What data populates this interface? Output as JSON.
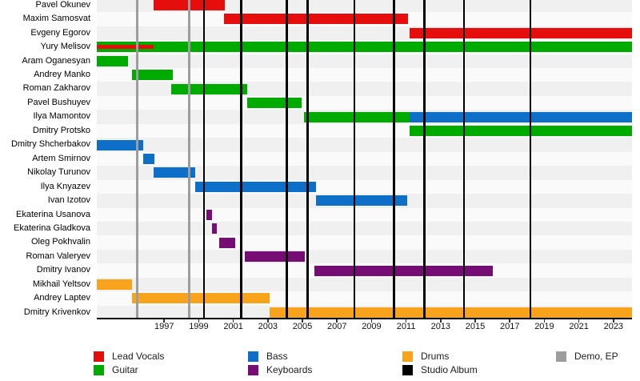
{
  "chart_data": {
    "type": "bar",
    "subtype": "horizontal-timeline-gantt (band members timeline)",
    "title": "",
    "xlabel": "",
    "ylabel": "",
    "x_axis": {
      "tick_years": [
        1997,
        1999,
        2001,
        2003,
        2005,
        2007,
        2009,
        2011,
        2013,
        2015,
        2017,
        2019,
        2021,
        2023
      ],
      "range": [
        1993.1,
        2024.1
      ],
      "grid": false
    },
    "roles": {
      "lead_vocals": {
        "label": "Lead Vocals",
        "color": "#e60d0d"
      },
      "guitar": {
        "label": "Guitar",
        "color": "#00ab00"
      },
      "bass": {
        "label": "Bass",
        "color": "#0e6fc8"
      },
      "keyboards": {
        "label": "Keyboards",
        "color": "#750d75"
      },
      "drums": {
        "label": "Drums",
        "color": "#f9a31d"
      },
      "studio_album": {
        "label": "Studio Album",
        "color": "#000000"
      },
      "demo_ep": {
        "label": "Demo, EP",
        "color": "#9d9d9d"
      }
    },
    "members": [
      {
        "name": "Pavel Okunev",
        "segments": [
          {
            "role": "lead_vocals",
            "start": 1996.4,
            "end": 2000.5
          }
        ]
      },
      {
        "name": "Maxim Samosvat",
        "segments": [
          {
            "role": "lead_vocals",
            "start": 2000.45,
            "end": 2011.1
          }
        ]
      },
      {
        "name": "Evgeny Egorov",
        "segments": [
          {
            "role": "lead_vocals",
            "start": 2011.2,
            "end": 2024.1
          }
        ]
      },
      {
        "name": "Yury Melisov",
        "segments": [
          {
            "role": "guitar",
            "start": 1993.1,
            "end": 2024.1
          },
          {
            "role": "lead_vocals",
            "start": 1993.1,
            "end": 1996.4,
            "thin": true
          }
        ]
      },
      {
        "name": "Aram Oganesyan",
        "segments": [
          {
            "role": "guitar",
            "start": 1993.1,
            "end": 1994.9
          }
        ]
      },
      {
        "name": "Andrey Manko",
        "segments": [
          {
            "role": "guitar",
            "start": 1995.15,
            "end": 1997.5
          }
        ]
      },
      {
        "name": "Roman Zakharov",
        "segments": [
          {
            "role": "guitar",
            "start": 1997.4,
            "end": 2001.8
          }
        ]
      },
      {
        "name": "Pavel Bushuyev",
        "segments": [
          {
            "role": "guitar",
            "start": 2001.8,
            "end": 2004.95
          }
        ]
      },
      {
        "name": "Ilya Mamontov",
        "segments": [
          {
            "role": "guitar",
            "start": 2005.1,
            "end": 2011.2
          },
          {
            "role": "bass",
            "start": 2011.2,
            "end": 2024.1
          }
        ]
      },
      {
        "name": "Dmitry Protsko",
        "segments": [
          {
            "role": "guitar",
            "start": 2011.2,
            "end": 2024.1
          }
        ]
      },
      {
        "name": "Dmitry Shcherbakov",
        "segments": [
          {
            "role": "bass",
            "start": 1993.1,
            "end": 1995.8
          }
        ]
      },
      {
        "name": "Artem Smirnov",
        "segments": [
          {
            "role": "bass",
            "start": 1995.8,
            "end": 1996.45
          }
        ]
      },
      {
        "name": "Nikolay Turunov",
        "segments": [
          {
            "role": "bass",
            "start": 1996.4,
            "end": 1998.8
          }
        ]
      },
      {
        "name": "Ilya Knyazev",
        "segments": [
          {
            "role": "bass",
            "start": 1998.8,
            "end": 2005.8
          }
        ]
      },
      {
        "name": "Ivan Izotov",
        "segments": [
          {
            "role": "bass",
            "start": 2005.8,
            "end": 2011.05
          }
        ]
      },
      {
        "name": "Ekaterina Usanova",
        "segments": [
          {
            "role": "keyboards",
            "start": 1999.45,
            "end": 1999.75
          }
        ]
      },
      {
        "name": "Ekaterina Gladkova",
        "segments": [
          {
            "role": "keyboards",
            "start": 1999.75,
            "end": 2000.05
          }
        ]
      },
      {
        "name": "Oleg Pokhvalin",
        "segments": [
          {
            "role": "keyboards",
            "start": 2000.2,
            "end": 2001.1
          }
        ]
      },
      {
        "name": "Roman Valeryev",
        "segments": [
          {
            "role": "keyboards",
            "start": 2001.65,
            "end": 2005.15
          }
        ]
      },
      {
        "name": "Dmitry Ivanov",
        "segments": [
          {
            "role": "keyboards",
            "start": 2005.7,
            "end": 2016.0
          }
        ]
      },
      {
        "name": "Mikhail Yeltsov",
        "segments": [
          {
            "role": "drums",
            "start": 1993.1,
            "end": 1995.15
          }
        ]
      },
      {
        "name": "Andrey Laptev",
        "segments": [
          {
            "role": "drums",
            "start": 1995.15,
            "end": 2003.1
          }
        ]
      },
      {
        "name": "Dmitry Krivenkov",
        "segments": [
          {
            "role": "drums",
            "start": 2003.1,
            "end": 2024.1
          }
        ]
      }
    ],
    "event_lines": {
      "demo_ep_years": [
        1995.45,
        1998.45
      ],
      "studio_album_years": [
        1999.3,
        2001.45,
        2004.1,
        2005.3,
        2008.0,
        2010.3,
        2012.05,
        2014.35,
        2018.2
      ]
    },
    "legend_position": "bottom"
  },
  "legend": {
    "items": [
      {
        "label": "Lead Vocals",
        "role": "lead_vocals",
        "col": 0,
        "row": 0
      },
      {
        "label": "Guitar",
        "role": "guitar",
        "col": 0,
        "row": 1
      },
      {
        "label": "Bass",
        "role": "bass",
        "col": 1,
        "row": 0
      },
      {
        "label": "Keyboards",
        "role": "keyboards",
        "col": 1,
        "row": 1
      },
      {
        "label": "Drums",
        "role": "drums",
        "col": 2,
        "row": 0
      },
      {
        "label": "Studio Album",
        "role": "studio_album",
        "col": 2,
        "row": 1
      },
      {
        "label": "Demo, EP",
        "role": "demo_ep",
        "col": 3,
        "row": 0
      }
    ]
  },
  "style_colors": {
    "band_even": "#f0f0f0",
    "band_odd": "#fafafa",
    "axis": "#000000",
    "demo_line": "#9d9d9d",
    "album_line": "#000000"
  }
}
